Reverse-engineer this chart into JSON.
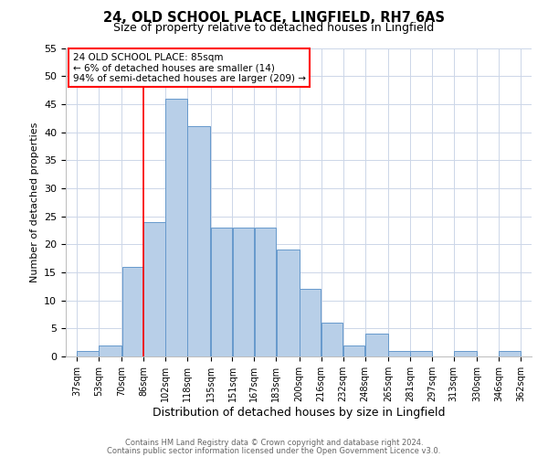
{
  "title": "24, OLD SCHOOL PLACE, LINGFIELD, RH7 6AS",
  "subtitle": "Size of property relative to detached houses in Lingfield",
  "xlabel": "Distribution of detached houses by size in Lingfield",
  "ylabel": "Number of detached properties",
  "bar_left_edges": [
    37,
    53,
    70,
    86,
    102,
    118,
    135,
    151,
    167,
    183,
    200,
    216,
    232,
    248,
    265,
    281,
    297,
    313,
    330,
    346
  ],
  "bar_heights": [
    1,
    2,
    16,
    24,
    46,
    41,
    23,
    23,
    23,
    19,
    12,
    6,
    2,
    4,
    1,
    1,
    0,
    1,
    0,
    1
  ],
  "bar_widths": [
    16,
    17,
    16,
    16,
    16,
    17,
    16,
    16,
    16,
    17,
    16,
    16,
    16,
    17,
    16,
    16,
    16,
    17,
    16,
    16
  ],
  "xtick_labels": [
    "37sqm",
    "53sqm",
    "70sqm",
    "86sqm",
    "102sqm",
    "118sqm",
    "135sqm",
    "151sqm",
    "167sqm",
    "183sqm",
    "200sqm",
    "216sqm",
    "232sqm",
    "248sqm",
    "265sqm",
    "281sqm",
    "297sqm",
    "313sqm",
    "330sqm",
    "346sqm",
    "362sqm"
  ],
  "xtick_positions": [
    37,
    53,
    70,
    86,
    102,
    118,
    135,
    151,
    167,
    183,
    200,
    216,
    232,
    248,
    265,
    281,
    297,
    313,
    330,
    346,
    362
  ],
  "xlim": [
    29,
    370
  ],
  "ylim": [
    0,
    55
  ],
  "yticks": [
    0,
    5,
    10,
    15,
    20,
    25,
    30,
    35,
    40,
    45,
    50,
    55
  ],
  "bar_color": "#b8cfe8",
  "bar_edgecolor": "#6699cc",
  "red_line_x": 86,
  "annotation_text_line1": "24 OLD SCHOOL PLACE: 85sqm",
  "annotation_text_line2": "← 6% of detached houses are smaller (14)",
  "annotation_text_line3": "94% of semi-detached houses are larger (209) →",
  "footer_line1": "Contains HM Land Registry data © Crown copyright and database right 2024.",
  "footer_line2": "Contains public sector information licensed under the Open Government Licence v3.0.",
  "background_color": "#ffffff",
  "grid_color": "#ccd6e8",
  "title_fontsize": 10.5,
  "subtitle_fontsize": 9,
  "ylabel_fontsize": 8,
  "xlabel_fontsize": 9,
  "tick_fontsize": 7,
  "ytick_fontsize": 8,
  "annotation_fontsize": 7.5,
  "footer_fontsize": 6
}
